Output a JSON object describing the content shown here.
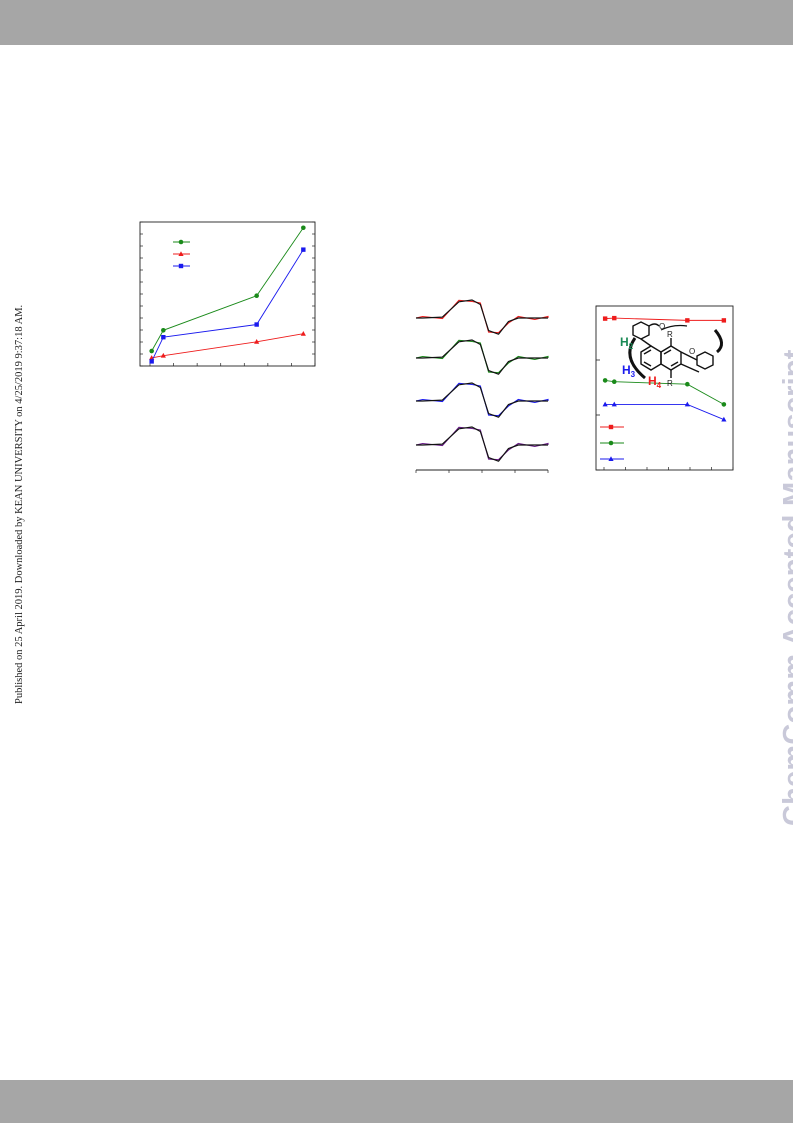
{
  "page": {
    "left_note": "Published on 25 April 2019. Downloaded by KEAN UNIVERSITY on 4/25/2019 9:37:18 AM.",
    "watermark": "ChemComm Accepted Manuscript"
  },
  "colors": {
    "band": "#a6a6a6",
    "green": "#1a8a1a",
    "red": "#ee1c1c",
    "blue": "#1a1aee",
    "watermark": "#c9c9d9"
  },
  "structure": {
    "label_h2": "H",
    "sub_h2": "2",
    "label_h3": "H",
    "sub_h3": "3",
    "label_h4": "H",
    "sub_h4": "4",
    "label_r_top": "R",
    "label_r_bottom": "R",
    "label_o_left": "O",
    "label_o_right": "O"
  },
  "chart_data": [
    {
      "type": "line",
      "x": [
        1,
        2,
        3,
        10,
        14
      ],
      "series": [
        {
          "name": "",
          "color": "green",
          "marker": "circle",
          "x": [
            1,
            2,
            10,
            14
          ],
          "y": [
            0.13,
            0.31,
            0.61,
            1.2
          ]
        },
        {
          "name": "",
          "color": "red",
          "marker": "triangle",
          "x": [
            1,
            2,
            10,
            14
          ],
          "y": [
            0.07,
            0.09,
            0.21,
            0.28
          ]
        },
        {
          "name": "",
          "color": "blue",
          "marker": "square",
          "x": [
            1,
            2,
            10,
            14
          ],
          "y": [
            0.04,
            0.25,
            0.36,
            1.01
          ]
        }
      ],
      "xlim": [
        0,
        15
      ],
      "ylim": [
        0,
        1.25
      ],
      "legend": "top-left",
      "grid": false
    },
    {
      "type": "line",
      "series": [
        {
          "name": "",
          "color": "red",
          "x": [
            -1.8,
            -1.2,
            -0.7,
            -0.3,
            -0.05,
            0.2,
            0.5,
            0.8,
            1.1,
            1.6,
            2.0
          ],
          "y": [
            0,
            0.05,
            0.9,
            1.0,
            0.75,
            -0.7,
            -0.9,
            -0.2,
            0,
            0,
            0
          ]
        },
        {
          "name": "",
          "color": "green",
          "x": [
            -1.8,
            -1.2,
            -0.7,
            -0.3,
            -0.05,
            0.2,
            0.5,
            0.8,
            1.1,
            1.6,
            2.0
          ],
          "y": [
            0,
            0.05,
            0.9,
            1.0,
            0.75,
            -0.7,
            -0.9,
            -0.2,
            0,
            0,
            0
          ]
        },
        {
          "name": "",
          "color": "blue",
          "x": [
            -1.8,
            -1.2,
            -0.7,
            -0.3,
            -0.05,
            0.2,
            0.5,
            0.8,
            1.1,
            1.6,
            2.0
          ],
          "y": [
            0,
            0.05,
            0.9,
            1.0,
            0.75,
            -0.7,
            -0.9,
            -0.2,
            0,
            0,
            0
          ]
        },
        {
          "name": "",
          "color": "purple",
          "x": [
            -1.8,
            -1.2,
            -0.7,
            -0.3,
            -0.05,
            0.2,
            0.5,
            0.8,
            1.1,
            1.6,
            2.0
          ],
          "y": [
            0,
            0.05,
            0.9,
            1.0,
            0.75,
            -0.7,
            -0.9,
            -0.2,
            0,
            0,
            0
          ]
        }
      ],
      "note": "stacked EPR-style spectra; experimental (thin) with fitted (black) overlay",
      "xlim": [
        -2,
        2
      ],
      "grid": false
    },
    {
      "type": "line",
      "x": [
        1,
        2,
        10,
        14
      ],
      "series": [
        {
          "name": "",
          "color": "red",
          "marker": "square",
          "x": [
            1,
            2,
            10,
            14
          ],
          "y": [
            4.0,
            4.02,
            3.93,
            3.93
          ]
        },
        {
          "name": "",
          "color": "green",
          "marker": "circle",
          "x": [
            1,
            2,
            10,
            14
          ],
          "y": [
            1.55,
            1.5,
            1.4,
            0.6
          ]
        },
        {
          "name": "",
          "color": "blue",
          "marker": "triangle",
          "x": [
            1,
            2,
            10,
            14
          ],
          "y": [
            0.6,
            0.6,
            0.6,
            0.0
          ]
        }
      ],
      "xlim": [
        0,
        15
      ],
      "ylim": [
        -2,
        4.5
      ],
      "legend": "bottom-left",
      "grid": false
    }
  ]
}
